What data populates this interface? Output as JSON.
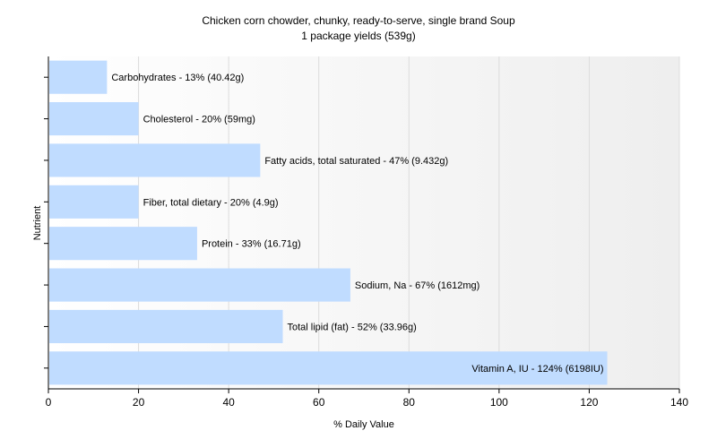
{
  "chart_data": {
    "type": "bar",
    "orientation": "horizontal",
    "title": "Chicken corn chowder, chunky, ready-to-serve, single brand Soup",
    "subtitle": "1 package yields (539g)",
    "xlabel": "% Daily Value",
    "ylabel": "Nutrient",
    "xlim": [
      0,
      140
    ],
    "xticks": [
      0,
      20,
      40,
      60,
      80,
      100,
      120,
      140
    ],
    "grid": true,
    "bar_color": "#c0dcff",
    "categories": [
      "Carbohydrates",
      "Cholesterol",
      "Fatty acids, total saturated",
      "Fiber, total dietary",
      "Protein",
      "Sodium, Na",
      "Total lipid (fat)",
      "Vitamin A, IU"
    ],
    "values": [
      13,
      20,
      47,
      20,
      33,
      67,
      52,
      124
    ],
    "labels": [
      "Carbohydrates - 13% (40.42g)",
      "Cholesterol - 20% (59mg)",
      "Fatty acids, total saturated - 47% (9.432g)",
      "Fiber, total dietary - 20% (4.9g)",
      "Protein - 33% (16.71g)",
      "Sodium, Na - 67% (1612mg)",
      "Total lipid (fat) - 52% (33.96g)",
      "Vitamin A, IU - 124% (6198IU)"
    ]
  }
}
